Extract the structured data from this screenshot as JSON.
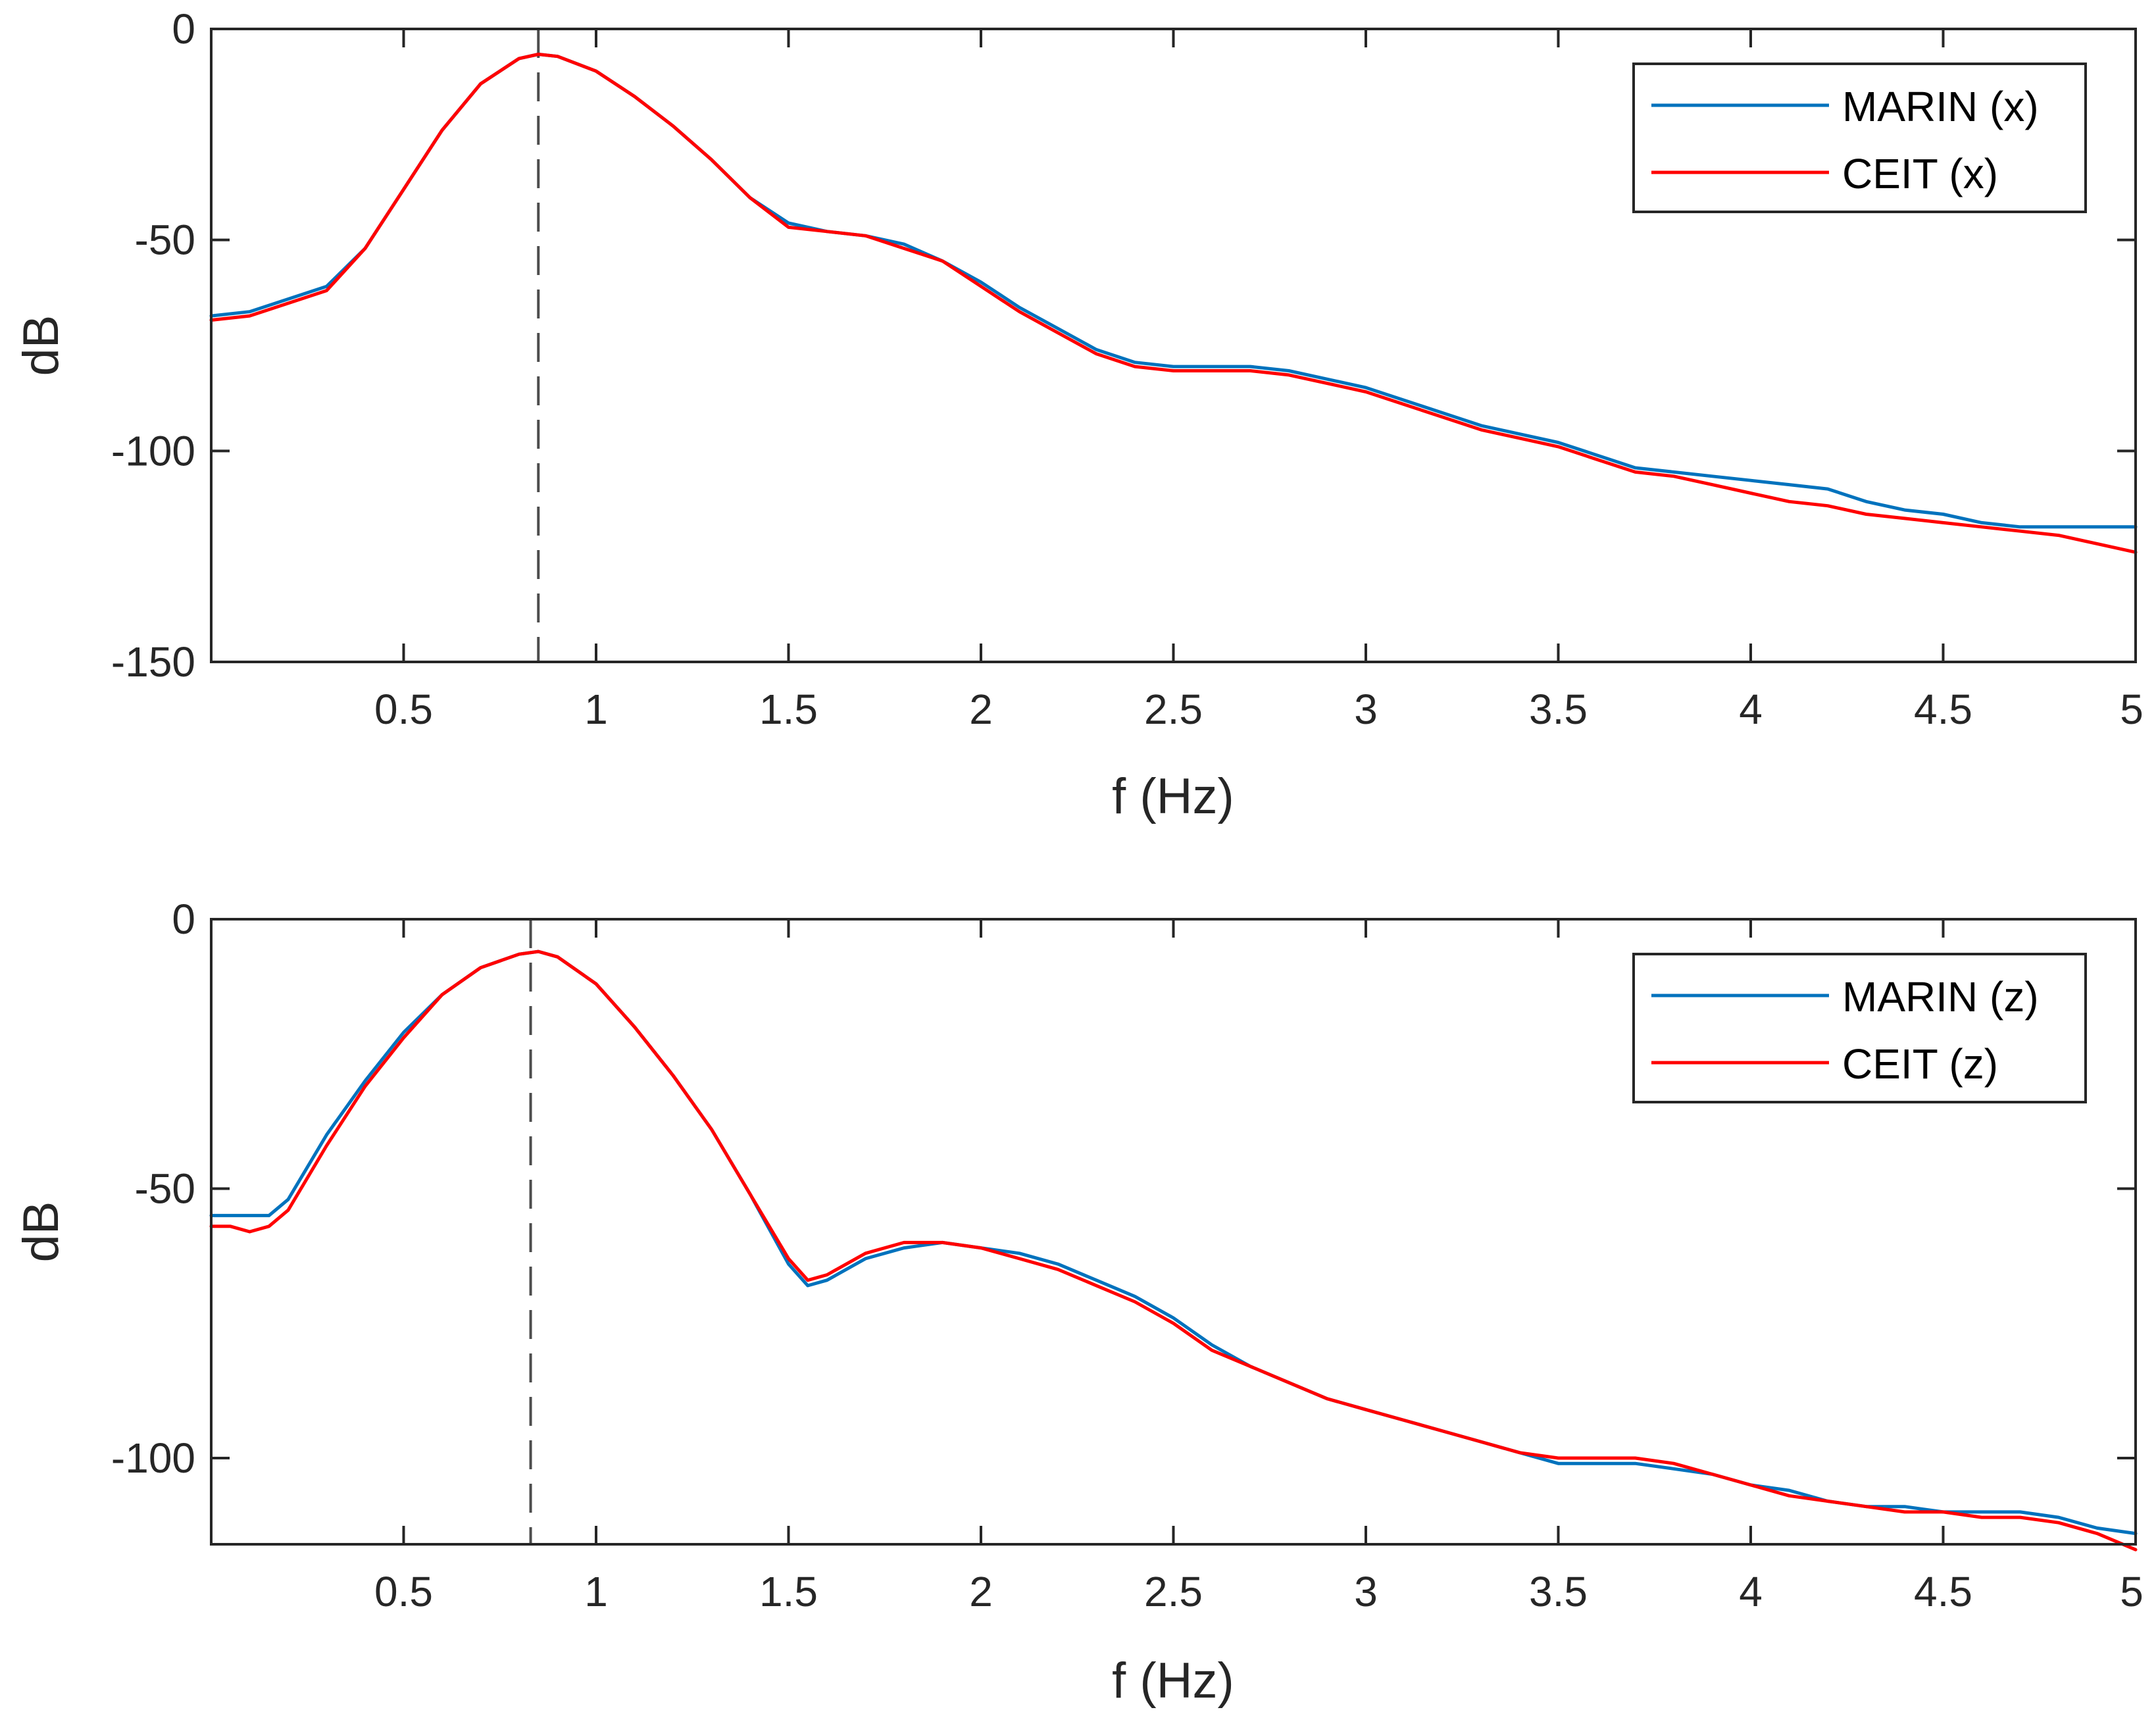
{
  "chart_data": [
    {
      "type": "line",
      "xlabel": "f (Hz)",
      "ylabel": "dB",
      "xlim": [
        0,
        5
      ],
      "ylim": [
        -150,
        0
      ],
      "xticks": [
        0.5,
        1,
        1.5,
        2,
        2.5,
        3,
        3.5,
        4,
        4.5,
        5
      ],
      "xtick_labels": [
        "0.5",
        "1",
        "1.5",
        "2",
        "2.5",
        "3",
        "3.5",
        "4",
        "4.5",
        "5"
      ],
      "yticks": [
        0,
        -50,
        -100,
        -150
      ],
      "ytick_labels": [
        "0",
        "-50",
        "-100",
        "-150"
      ],
      "peak_marker_x": 0.85,
      "legend_position": "top-right",
      "series": [
        {
          "name": "MARIN (x)",
          "color": "#0072BD",
          "x": [
            0,
            0.1,
            0.2,
            0.3,
            0.4,
            0.5,
            0.6,
            0.7,
            0.8,
            0.85,
            0.9,
            1.0,
            1.1,
            1.2,
            1.3,
            1.4,
            1.5,
            1.6,
            1.7,
            1.8,
            1.9,
            2.0,
            2.1,
            2.2,
            2.3,
            2.4,
            2.5,
            2.6,
            2.7,
            2.8,
            2.9,
            3.0,
            3.1,
            3.2,
            3.3,
            3.4,
            3.5,
            3.6,
            3.7,
            3.8,
            3.9,
            4.0,
            4.1,
            4.2,
            4.3,
            4.4,
            4.5,
            4.6,
            4.7,
            4.8,
            4.9,
            5.0
          ],
          "values": [
            -68,
            -67,
            -64,
            -61,
            -52,
            -38,
            -24,
            -13,
            -7,
            -6,
            -6.5,
            -10,
            -16,
            -23,
            -31,
            -40,
            -46,
            -48,
            -49,
            -51,
            -55,
            -60,
            -66,
            -71,
            -76,
            -79,
            -80,
            -80,
            -80,
            -81,
            -83,
            -85,
            -88,
            -91,
            -94,
            -96,
            -98,
            -101,
            -104,
            -105,
            -106,
            -107,
            -108,
            -109,
            -112,
            -114,
            -115,
            -117,
            -118,
            -118,
            -118,
            -118
          ]
        },
        {
          "name": "CEIT (x)",
          "color": "#FF0000",
          "x": [
            0,
            0.1,
            0.2,
            0.3,
            0.4,
            0.5,
            0.6,
            0.7,
            0.8,
            0.85,
            0.9,
            1.0,
            1.1,
            1.2,
            1.3,
            1.4,
            1.5,
            1.6,
            1.7,
            1.8,
            1.9,
            2.0,
            2.1,
            2.2,
            2.3,
            2.4,
            2.5,
            2.6,
            2.7,
            2.8,
            2.9,
            3.0,
            3.1,
            3.2,
            3.3,
            3.4,
            3.5,
            3.6,
            3.7,
            3.8,
            3.9,
            4.0,
            4.1,
            4.2,
            4.3,
            4.4,
            4.5,
            4.6,
            4.7,
            4.8,
            4.9,
            5.0
          ],
          "values": [
            -69,
            -68,
            -65,
            -62,
            -52,
            -38,
            -24,
            -13,
            -7,
            -6,
            -6.5,
            -10,
            -16,
            -23,
            -31,
            -40,
            -47,
            -48,
            -49,
            -52,
            -55,
            -61,
            -67,
            -72,
            -77,
            -80,
            -81,
            -81,
            -81,
            -82,
            -84,
            -86,
            -89,
            -92,
            -95,
            -97,
            -99,
            -102,
            -105,
            -106,
            -108,
            -110,
            -112,
            -113,
            -115,
            -116,
            -117,
            -118,
            -119,
            -120,
            -122,
            -124
          ]
        }
      ]
    },
    {
      "type": "line",
      "xlabel": "f (Hz)",
      "ylabel": "dB",
      "xlim": [
        0,
        5
      ],
      "ylim": [
        -116,
        0
      ],
      "xticks": [
        0.5,
        1,
        1.5,
        2,
        2.5,
        3,
        3.5,
        4,
        4.5,
        5
      ],
      "xtick_labels": [
        "0.5",
        "1",
        "1.5",
        "2",
        "2.5",
        "3",
        "3.5",
        "4",
        "4.5",
        "5"
      ],
      "yticks": [
        0,
        -50,
        -100
      ],
      "ytick_labels": [
        "0",
        "-50",
        "-100"
      ],
      "peak_marker_x": 0.83,
      "legend_position": "top-right",
      "series": [
        {
          "name": "MARIN (z)",
          "color": "#0072BD",
          "x": [
            0,
            0.05,
            0.1,
            0.15,
            0.2,
            0.3,
            0.4,
            0.5,
            0.6,
            0.7,
            0.8,
            0.85,
            0.9,
            1.0,
            1.1,
            1.2,
            1.3,
            1.4,
            1.5,
            1.55,
            1.6,
            1.7,
            1.8,
            1.9,
            2.0,
            2.1,
            2.2,
            2.3,
            2.4,
            2.5,
            2.6,
            2.7,
            2.8,
            2.9,
            3.0,
            3.1,
            3.2,
            3.3,
            3.4,
            3.5,
            3.6,
            3.7,
            3.8,
            3.9,
            4.0,
            4.1,
            4.2,
            4.3,
            4.4,
            4.5,
            4.6,
            4.7,
            4.8,
            4.9,
            5.0
          ],
          "values": [
            -55,
            -55,
            -55,
            -55,
            -52,
            -40,
            -30,
            -21,
            -14,
            -9,
            -6.5,
            -6,
            -7,
            -12,
            -20,
            -29,
            -39,
            -51,
            -64,
            -68,
            -67,
            -63,
            -61,
            -60,
            -61,
            -62,
            -64,
            -67,
            -70,
            -74,
            -79,
            -83,
            -86,
            -89,
            -91,
            -93,
            -95,
            -97,
            -99,
            -101,
            -101,
            -101,
            -102,
            -103,
            -105,
            -106,
            -108,
            -109,
            -109,
            -110,
            -110,
            -110,
            -111,
            -113,
            -114
          ]
        },
        {
          "name": "CEIT (z)",
          "color": "#FF0000",
          "x": [
            0,
            0.05,
            0.1,
            0.15,
            0.2,
            0.3,
            0.4,
            0.5,
            0.6,
            0.7,
            0.8,
            0.85,
            0.9,
            1.0,
            1.1,
            1.2,
            1.3,
            1.4,
            1.5,
            1.55,
            1.6,
            1.7,
            1.8,
            1.9,
            2.0,
            2.1,
            2.2,
            2.3,
            2.4,
            2.5,
            2.6,
            2.7,
            2.8,
            2.9,
            3.0,
            3.1,
            3.2,
            3.3,
            3.4,
            3.5,
            3.6,
            3.7,
            3.8,
            3.9,
            4.0,
            4.1,
            4.2,
            4.3,
            4.4,
            4.5,
            4.6,
            4.7,
            4.8,
            4.9,
            5.0
          ],
          "values": [
            -57,
            -57,
            -58,
            -57,
            -54,
            -42,
            -31,
            -22,
            -14,
            -9,
            -6.5,
            -6,
            -7,
            -12,
            -20,
            -29,
            -39,
            -51,
            -63,
            -67,
            -66,
            -62,
            -60,
            -60,
            -61,
            -63,
            -65,
            -68,
            -71,
            -75,
            -80,
            -83,
            -86,
            -89,
            -91,
            -93,
            -95,
            -97,
            -99,
            -100,
            -100,
            -100,
            -101,
            -103,
            -105,
            -107,
            -108,
            -109,
            -110,
            -110,
            -111,
            -111,
            -112,
            -114,
            -117
          ]
        }
      ]
    }
  ]
}
